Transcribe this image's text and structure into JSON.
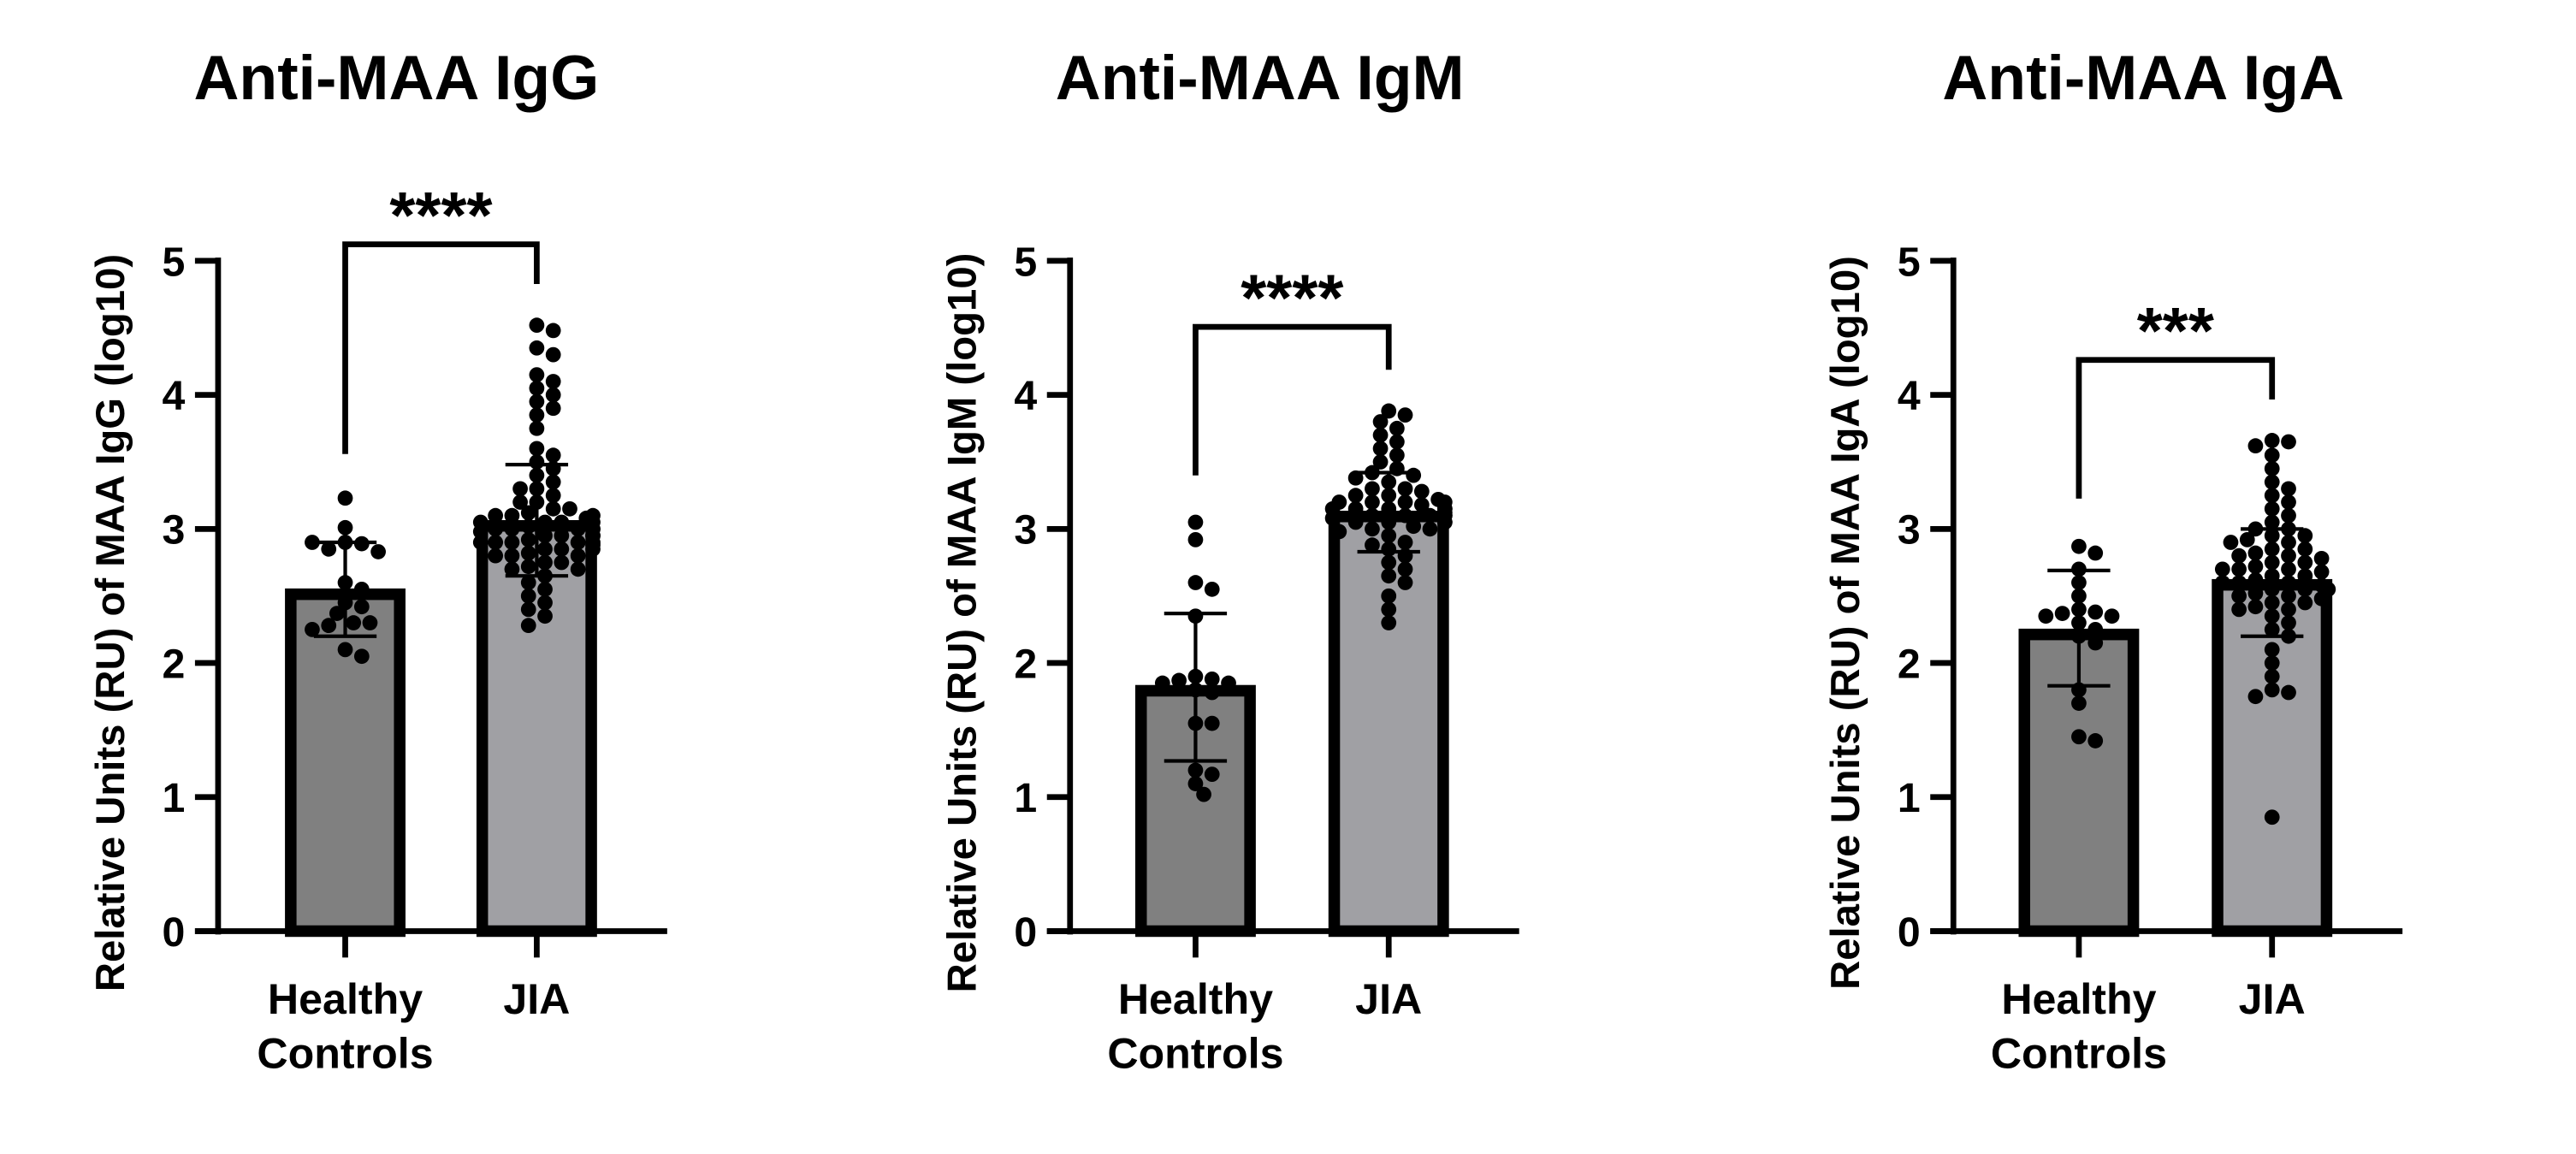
{
  "colors": {
    "healthy_bar": "#808080",
    "jia_bar": "#a0a0a4",
    "points": "#000000",
    "outline": "#000000"
  },
  "chart_data": [
    {
      "type": "bar",
      "title": "Anti-MAA IgG",
      "ylabel": "Relative Units (RU) of MAA IgG (log10)",
      "ylim": [
        0,
        5
      ],
      "yticks": [
        "0",
        "1",
        "2",
        "3",
        "4",
        "5"
      ],
      "categories": [
        "Healthy\nControls",
        "JIA"
      ],
      "category_lines": [
        [
          "Healthy",
          "Controls"
        ],
        [
          "JIA"
        ]
      ],
      "means": [
        2.55,
        3.06
      ],
      "error": [
        [
          2.2,
          2.9
        ],
        [
          2.65,
          3.48
        ]
      ],
      "significance": "****",
      "points": [
        [
          3.23,
          3.01,
          2.9,
          2.89,
          2.85,
          2.83,
          2.6,
          2.55,
          2.45,
          2.42,
          2.37,
          2.3,
          2.3,
          2.28,
          2.25,
          2.1,
          2.05,
          2.9
        ],
        [
          4.52,
          4.48,
          4.35,
          4.3,
          4.15,
          4.1,
          4.05,
          4.0,
          3.95,
          3.9,
          3.85,
          3.75,
          3.6,
          3.55,
          3.5,
          3.45,
          3.4,
          3.35,
          3.3,
          3.3,
          3.25,
          3.2,
          3.2,
          3.15,
          3.15,
          3.12,
          3.1,
          3.1,
          3.08,
          3.05,
          3.05,
          3.05,
          3.02,
          3.0,
          3.0,
          3.0,
          3.0,
          2.98,
          2.95,
          2.95,
          2.95,
          2.92,
          2.9,
          2.9,
          2.9,
          2.9,
          2.88,
          2.85,
          2.85,
          2.85,
          2.82,
          2.8,
          2.8,
          2.8,
          2.75,
          2.75,
          2.72,
          2.7,
          2.7,
          2.65,
          2.6,
          2.55,
          2.5,
          2.45,
          2.4,
          2.35,
          2.28,
          3.0,
          2.95,
          3.05,
          2.9,
          3.1
        ]
      ]
    },
    {
      "type": "bar",
      "title": "Anti-MAA IgM",
      "ylabel": "Relative Units (RU) of MAA IgM (log10)",
      "ylim": [
        0,
        5
      ],
      "yticks": [
        "0",
        "1",
        "2",
        "3",
        "4",
        "5"
      ],
      "categories": [
        "Healthy\nControls",
        "JIA"
      ],
      "category_lines": [
        [
          "Healthy",
          "Controls"
        ],
        [
          "JIA"
        ]
      ],
      "means": [
        1.83,
        3.13
      ],
      "error": [
        [
          1.27,
          2.37
        ],
        [
          2.83,
          3.42
        ]
      ],
      "significance": "****",
      "points": [
        [
          3.05,
          2.92,
          2.6,
          2.55,
          2.35,
          1.9,
          1.88,
          1.87,
          1.85,
          1.85,
          1.8,
          1.78,
          1.55,
          1.55,
          1.2,
          1.17,
          1.1,
          1.02
        ],
        [
          3.88,
          3.85,
          3.8,
          3.75,
          3.7,
          3.65,
          3.6,
          3.55,
          3.5,
          3.45,
          3.42,
          3.4,
          3.38,
          3.35,
          3.3,
          3.3,
          3.28,
          3.25,
          3.25,
          3.22,
          3.2,
          3.2,
          3.2,
          3.18,
          3.15,
          3.15,
          3.15,
          3.15,
          3.12,
          3.1,
          3.1,
          3.1,
          3.1,
          3.08,
          3.05,
          3.05,
          3.05,
          3.02,
          3.0,
          3.0,
          2.98,
          2.95,
          2.9,
          2.88,
          2.85,
          2.8,
          2.75,
          2.7,
          2.65,
          2.6,
          2.5,
          2.4,
          2.3,
          3.15,
          3.1,
          3.2,
          3.05
        ]
      ]
    },
    {
      "type": "bar",
      "title": "Anti-MAA IgA",
      "ylabel": "Relative Units (RU) of MAA IgA (log10)",
      "ylim": [
        0,
        5
      ],
      "yticks": [
        "0",
        "1",
        "2",
        "3",
        "4",
        "5"
      ],
      "categories": [
        "Healthy\nControls",
        "JIA"
      ],
      "category_lines": [
        [
          "Healthy",
          "Controls"
        ],
        [
          "JIA"
        ]
      ],
      "means": [
        2.25,
        2.62
      ],
      "error": [
        [
          1.83,
          2.69
        ],
        [
          2.2,
          3.0
        ]
      ],
      "significance": "***",
      "points": [
        [
          2.87,
          2.82,
          2.7,
          2.6,
          2.5,
          2.4,
          2.38,
          2.37,
          2.35,
          2.35,
          2.3,
          2.25,
          2.2,
          2.15,
          1.8,
          1.7,
          1.45,
          1.42
        ],
        [
          3.66,
          3.65,
          3.62,
          3.55,
          3.45,
          3.35,
          3.3,
          3.25,
          3.2,
          3.15,
          3.1,
          3.05,
          3.0,
          3.0,
          2.95,
          2.95,
          2.92,
          2.9,
          2.9,
          2.85,
          2.85,
          2.82,
          2.8,
          2.8,
          2.78,
          2.75,
          2.75,
          2.72,
          2.7,
          2.7,
          2.68,
          2.65,
          2.65,
          2.62,
          2.6,
          2.6,
          2.58,
          2.55,
          2.55,
          2.52,
          2.5,
          2.5,
          2.48,
          2.45,
          2.45,
          2.42,
          2.4,
          2.4,
          2.35,
          2.3,
          2.25,
          2.2,
          2.1,
          2.0,
          1.9,
          1.8,
          1.78,
          1.75,
          0.85,
          2.6,
          2.55,
          2.7
        ]
      ]
    }
  ]
}
